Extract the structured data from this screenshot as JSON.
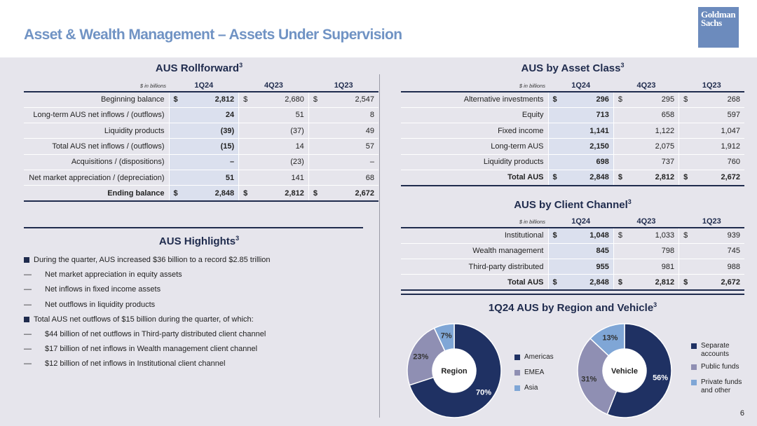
{
  "page": {
    "title": "Asset & Wealth Management – Assets Under Supervision",
    "logo_line1": "Goldman",
    "logo_line2": "Sachs",
    "page_number": "6"
  },
  "rollforward": {
    "title": "AUS Rollforward",
    "sup": "3",
    "unit": "$ in billions",
    "columns": [
      "1Q24",
      "4Q23",
      "1Q23"
    ],
    "rows": [
      {
        "label": "Beginning balance",
        "bold": false,
        "dollar": true,
        "values": [
          "2,812",
          "2,680",
          "2,547"
        ]
      },
      {
        "label": "Long-term AUS net inflows / (outflows)",
        "bold": false,
        "dollar": false,
        "values": [
          "24",
          "51",
          "8"
        ]
      },
      {
        "label": "Liquidity products",
        "bold": false,
        "dollar": false,
        "values": [
          "(39)",
          "(37)",
          "49"
        ]
      },
      {
        "label": "Total AUS net inflows / (outflows)",
        "bold": false,
        "dollar": false,
        "values": [
          "(15)",
          "14",
          "57"
        ]
      },
      {
        "label": "Acquisitions / (dispositions)",
        "bold": false,
        "dollar": false,
        "values": [
          "–",
          "(23)",
          "–"
        ]
      },
      {
        "label": "Net market appreciation / (depreciation)",
        "bold": false,
        "dollar": false,
        "values": [
          "51",
          "141",
          "68"
        ]
      },
      {
        "label": "Ending balance",
        "bold": true,
        "dollar": true,
        "values": [
          "2,848",
          "2,812",
          "2,672"
        ]
      }
    ]
  },
  "asset_class": {
    "title": "AUS by Asset Class",
    "sup": "3",
    "unit": "$ in billions",
    "columns": [
      "1Q24",
      "4Q23",
      "1Q23"
    ],
    "rows": [
      {
        "label": "Alternative investments",
        "bold": false,
        "dollar": true,
        "values": [
          "296",
          "295",
          "268"
        ]
      },
      {
        "label": "Equity",
        "bold": false,
        "dollar": false,
        "values": [
          "713",
          "658",
          "597"
        ]
      },
      {
        "label": "Fixed income",
        "bold": false,
        "dollar": false,
        "values": [
          "1,141",
          "1,122",
          "1,047"
        ]
      },
      {
        "label": "Long-term AUS",
        "bold": false,
        "dollar": false,
        "values": [
          "2,150",
          "2,075",
          "1,912"
        ]
      },
      {
        "label": "Liquidity products",
        "bold": false,
        "dollar": false,
        "values": [
          "698",
          "737",
          "760"
        ]
      },
      {
        "label": "Total AUS",
        "bold": true,
        "dollar": true,
        "values": [
          "2,848",
          "2,812",
          "2,672"
        ]
      }
    ]
  },
  "client_channel": {
    "title": "AUS by Client Channel",
    "sup": "3",
    "unit": "$ in billions",
    "columns": [
      "1Q24",
      "4Q23",
      "1Q23"
    ],
    "rows": [
      {
        "label": "Institutional",
        "bold": false,
        "dollar": true,
        "values": [
          "1,048",
          "1,033",
          "939"
        ]
      },
      {
        "label": "Wealth management",
        "bold": false,
        "dollar": false,
        "values": [
          "845",
          "798",
          "745"
        ]
      },
      {
        "label": "Third-party distributed",
        "bold": false,
        "dollar": false,
        "values": [
          "955",
          "981",
          "988"
        ]
      },
      {
        "label": "Total AUS",
        "bold": true,
        "dollar": true,
        "values": [
          "2,848",
          "2,812",
          "2,672"
        ]
      }
    ]
  },
  "highlights": {
    "title": "AUS Highlights",
    "sup": "3",
    "items": [
      {
        "level": 1,
        "text": "During the quarter, AUS increased $36 billion to a record $2.85 trillion"
      },
      {
        "level": 2,
        "text": "Net market appreciation in equity assets"
      },
      {
        "level": 2,
        "text": "Net inflows in fixed income assets"
      },
      {
        "level": 2,
        "text": "Net outflows in liquidity products"
      },
      {
        "level": 1,
        "text": "Total AUS net outflows of $15 billion during the quarter, of which:"
      },
      {
        "level": 2,
        "text": "$44 billion of net outflows in Third-party distributed client channel"
      },
      {
        "level": 2,
        "text": "$17 billion of net inflows in Wealth management client channel"
      },
      {
        "level": 2,
        "text": "$12 billion of net inflows in Institutional client channel"
      }
    ],
    "dash": "—"
  },
  "donuts": {
    "title": "1Q24 AUS by Region and Vehicle",
    "sup": "3"
  },
  "chart_data": [
    {
      "type": "pie",
      "center_label": "Region",
      "categories": [
        "Americas",
        "EMEA",
        "Asia"
      ],
      "values": [
        70,
        23,
        7
      ],
      "labels": [
        "70%",
        "23%",
        "7%"
      ],
      "colors": [
        "#1f3163",
        "#8f8fb3",
        "#7fa6d6"
      ]
    },
    {
      "type": "pie",
      "center_label": "Vehicle",
      "categories": [
        "Separate accounts",
        "Public funds",
        "Private funds and other"
      ],
      "values": [
        56,
        31,
        13
      ],
      "labels": [
        "56%",
        "31%",
        "13%"
      ],
      "colors": [
        "#1f3163",
        "#8f8fb3",
        "#7fa6d6"
      ]
    }
  ],
  "legend_region": [
    "Americas",
    "EMEA",
    "Asia"
  ],
  "legend_vehicle": [
    [
      "Separate",
      "accounts"
    ],
    [
      "Public funds"
    ],
    [
      "Private funds",
      "and other"
    ]
  ]
}
